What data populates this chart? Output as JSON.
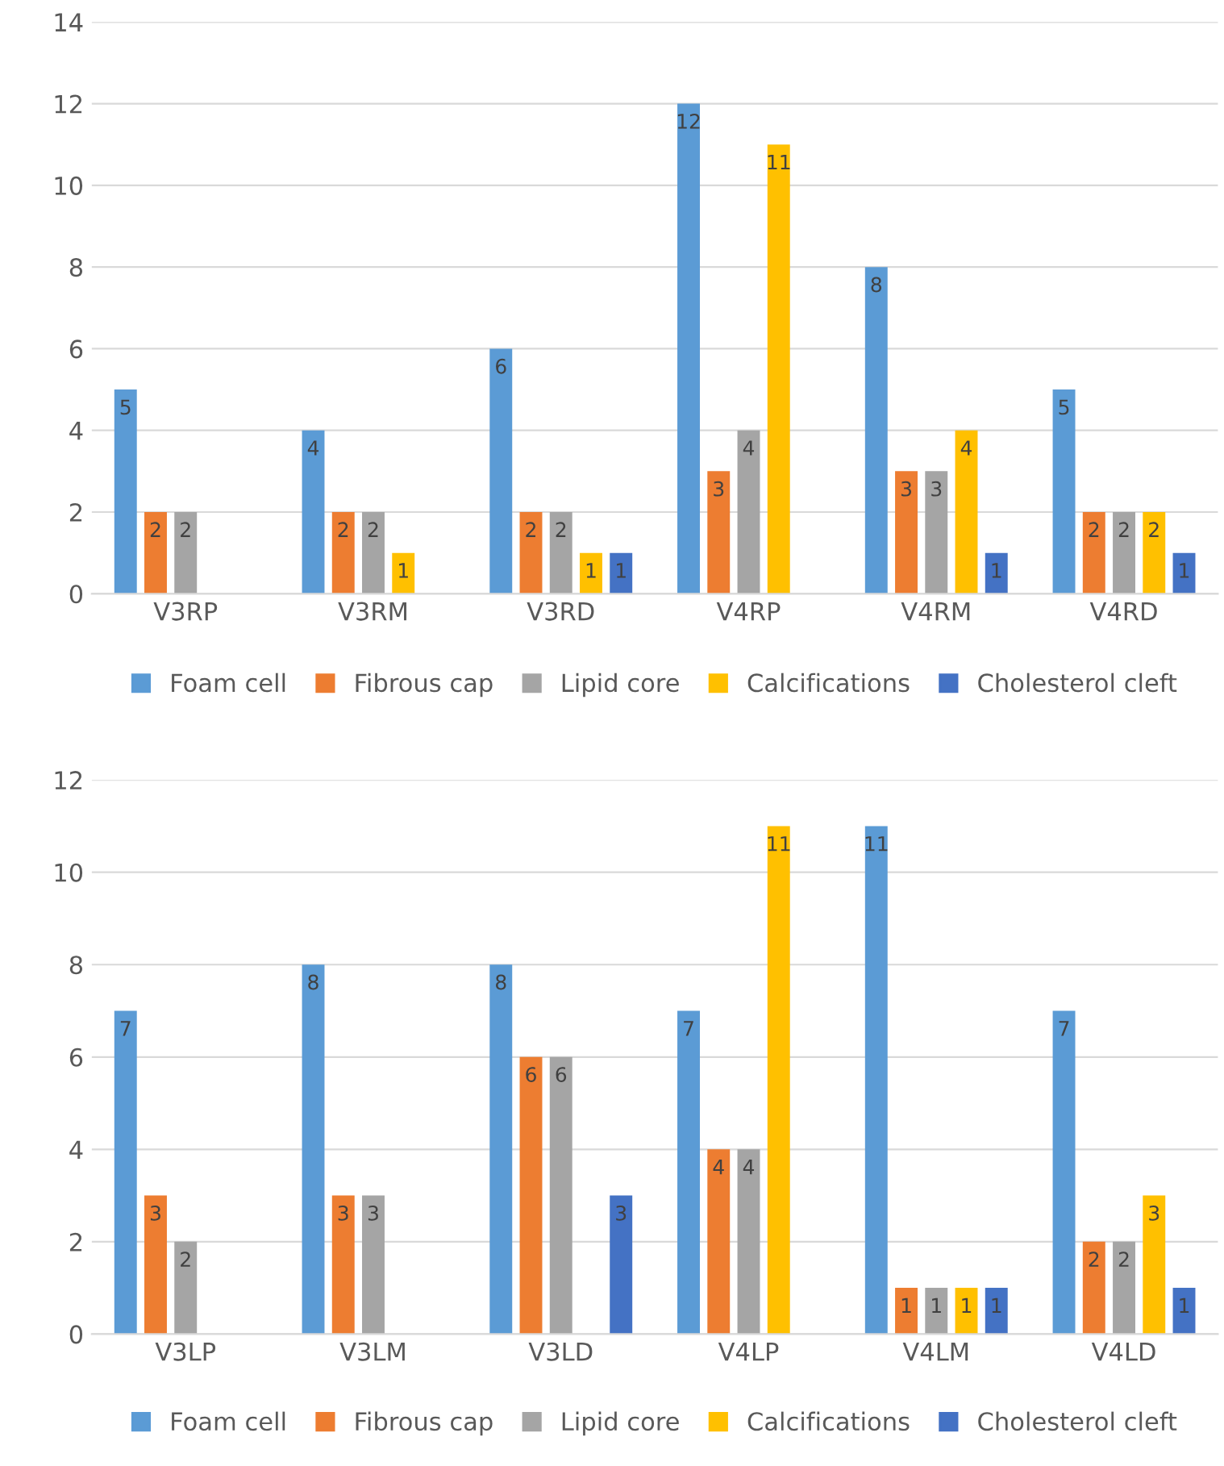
{
  "chart_data": [
    {
      "type": "bar",
      "categories": [
        "V3RP",
        "V3RM",
        "V3RD",
        "V4RP",
        "V4RM",
        "V4RD"
      ],
      "ylim": [
        0,
        14
      ],
      "yticks": [
        0,
        2,
        4,
        6,
        8,
        10,
        12,
        14
      ],
      "grid": "y",
      "legend": "bottom",
      "data_labels": true,
      "series": [
        {
          "name": "Foam cell",
          "color": "#5b9bd5",
          "values": [
            5,
            4,
            6,
            12,
            8,
            5
          ]
        },
        {
          "name": "Fibrous cap",
          "color": "#ed7d31",
          "values": [
            2,
            2,
            2,
            3,
            3,
            2
          ]
        },
        {
          "name": "Lipid core",
          "color": "#a5a5a5",
          "values": [
            2,
            2,
            2,
            4,
            3,
            2
          ]
        },
        {
          "name": "Calcifications",
          "color": "#ffc000",
          "values": [
            null,
            1,
            1,
            11,
            4,
            2
          ]
        },
        {
          "name": "Cholesterol cleft",
          "color": "#4472c4",
          "values": [
            null,
            null,
            1,
            null,
            1,
            1
          ]
        }
      ]
    },
    {
      "type": "bar",
      "categories": [
        "V3LP",
        "V3LM",
        "V3LD",
        "V4LP",
        "V4LM",
        "V4LD"
      ],
      "ylim": [
        0,
        12
      ],
      "yticks": [
        0,
        2,
        4,
        6,
        8,
        10,
        12
      ],
      "grid": "y",
      "legend": "bottom",
      "data_labels": true,
      "series": [
        {
          "name": "Foam cell",
          "color": "#5b9bd5",
          "values": [
            7,
            8,
            8,
            7,
            11,
            7
          ]
        },
        {
          "name": "Fibrous cap",
          "color": "#ed7d31",
          "values": [
            3,
            3,
            6,
            4,
            1,
            2
          ]
        },
        {
          "name": "Lipid core",
          "color": "#a5a5a5",
          "values": [
            2,
            3,
            6,
            4,
            1,
            2
          ]
        },
        {
          "name": "Calcifications",
          "color": "#ffc000",
          "values": [
            null,
            null,
            null,
            11,
            1,
            3
          ]
        },
        {
          "name": "Cholesterol cleft",
          "color": "#4472c4",
          "values": [
            null,
            null,
            3,
            null,
            1,
            1
          ]
        }
      ]
    }
  ]
}
